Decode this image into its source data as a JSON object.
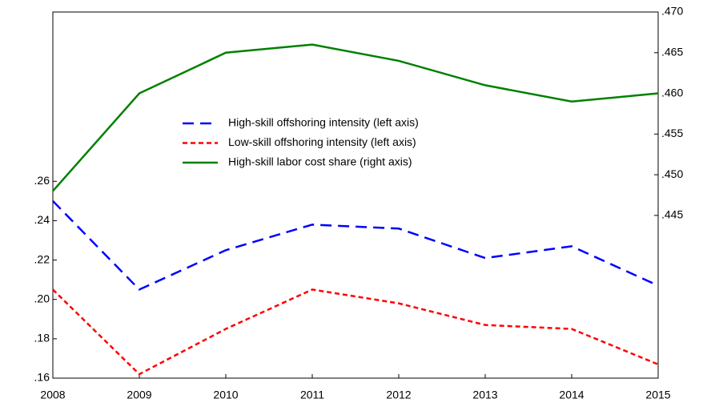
{
  "chart_data": {
    "type": "line",
    "x": [
      2008,
      2009,
      2010,
      2011,
      2012,
      2013,
      2014,
      2015
    ],
    "series": [
      {
        "name": "High-skill offshoring intensity (left axis)",
        "color": "#0000ff",
        "dash": "14 8",
        "values": [
          0.25,
          0.205,
          0.225,
          0.238,
          0.236,
          0.221,
          0.227,
          0.207
        ]
      },
      {
        "name": "Low-skill offshoring intensity (left axis)",
        "color": "#ff0000",
        "dash": "6 4",
        "values": [
          0.205,
          0.162,
          0.185,
          0.205,
          0.198,
          0.187,
          0.185,
          0.167
        ]
      },
      {
        "name": "High-skill labor cost share (right axis)",
        "color": "#008000",
        "axis": "y2",
        "values": [
          0.448,
          0.46,
          0.465,
          0.466,
          0.464,
          0.461,
          0.459,
          0.46
        ]
      }
    ],
    "xlim": [
      2008,
      2015
    ],
    "xticks": [
      2008,
      2009,
      2010,
      2011,
      2012,
      2013,
      2014,
      2015
    ],
    "ylim": [
      0.16,
      0.346
    ],
    "yticks": [
      {
        "value": 0.16,
        "label": ".16"
      },
      {
        "value": 0.18,
        "label": ".18"
      },
      {
        "value": 0.2,
        "label": ".20"
      },
      {
        "value": 0.22,
        "label": ".22"
      },
      {
        "value": 0.24,
        "label": ".24"
      },
      {
        "value": 0.26,
        "label": ".26"
      }
    ],
    "y2lim": [
      0.425,
      0.47
    ],
    "y2ticks": [
      {
        "value": 0.445,
        "label": ".445"
      },
      {
        "value": 0.45,
        "label": ".450"
      },
      {
        "value": 0.455,
        "label": ".455"
      },
      {
        "value": 0.46,
        "label": ".460"
      },
      {
        "value": 0.465,
        "label": ".465"
      },
      {
        "value": 0.47,
        "label": ".470"
      }
    ],
    "grid": false
  }
}
